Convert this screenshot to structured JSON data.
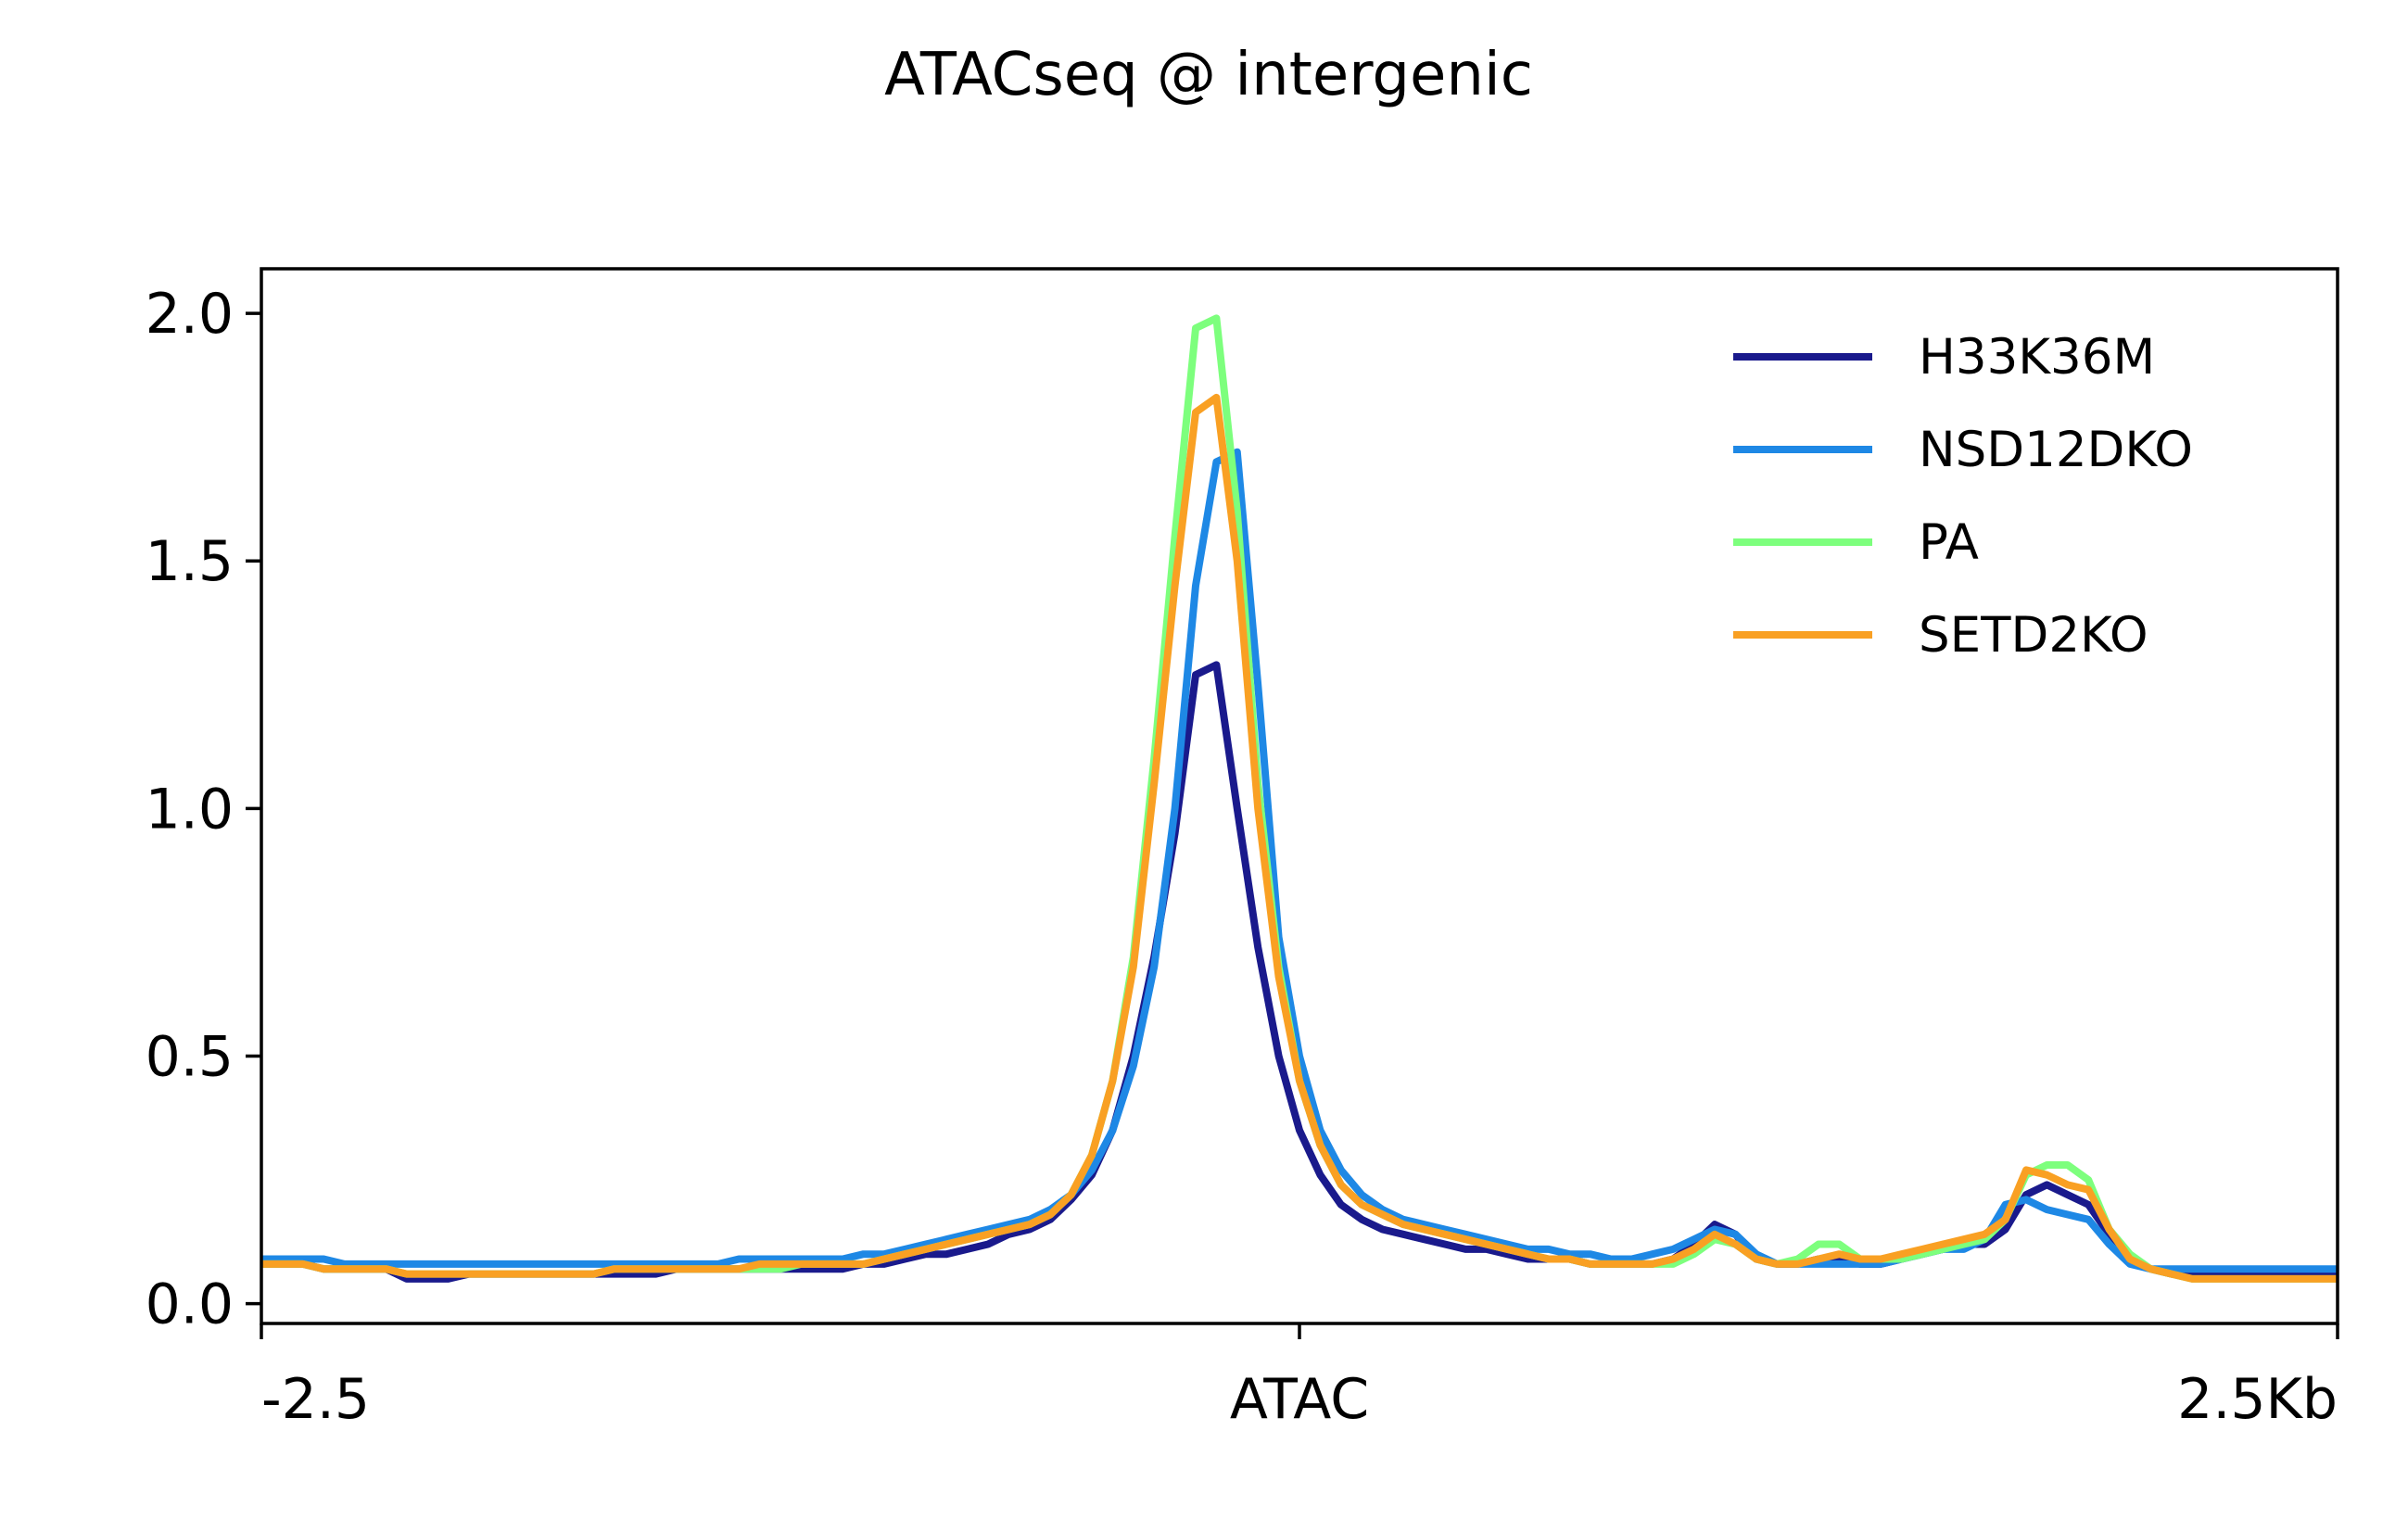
{
  "chart_data": {
    "type": "line",
    "title": "ATACseq @ intergenic",
    "xlabel": "",
    "ylabel": "",
    "xlim": [
      -2.5,
      2.5
    ],
    "ylim": [
      -0.04,
      2.09
    ],
    "x_ticks": [
      {
        "value": -2.5,
        "label": "-2.5"
      },
      {
        "value": 0.0,
        "label": "ATAC"
      },
      {
        "value": 2.5,
        "label": "2.5Kb"
      }
    ],
    "y_ticks": [
      {
        "value": 0.0,
        "label": "0.0"
      },
      {
        "value": 0.5,
        "label": "0.5"
      },
      {
        "value": 1.0,
        "label": "1.0"
      },
      {
        "value": 1.5,
        "label": "1.5"
      },
      {
        "value": 2.0,
        "label": "2.0"
      }
    ],
    "grid": false,
    "legend_position": "top-right",
    "x": [
      -2.5,
      -2.45,
      -2.4,
      -2.35,
      -2.3,
      -2.25,
      -2.2,
      -2.15,
      -2.1,
      -2.05,
      -2.0,
      -1.95,
      -1.9,
      -1.85,
      -1.8,
      -1.75,
      -1.7,
      -1.65,
      -1.6,
      -1.55,
      -1.5,
      -1.45,
      -1.4,
      -1.35,
      -1.3,
      -1.25,
      -1.2,
      -1.15,
      -1.1,
      -1.05,
      -1.0,
      -0.95,
      -0.9,
      -0.85,
      -0.8,
      -0.75,
      -0.7,
      -0.65,
      -0.6,
      -0.55,
      -0.5,
      -0.45,
      -0.4,
      -0.35,
      -0.3,
      -0.25,
      -0.2,
      -0.15,
      -0.1,
      -0.05,
      0.0,
      0.05,
      0.1,
      0.15,
      0.2,
      0.25,
      0.3,
      0.35,
      0.4,
      0.45,
      0.5,
      0.55,
      0.6,
      0.65,
      0.7,
      0.75,
      0.8,
      0.85,
      0.9,
      0.95,
      1.0,
      1.05,
      1.1,
      1.15,
      1.2,
      1.25,
      1.3,
      1.35,
      1.4,
      1.45,
      1.5,
      1.55,
      1.6,
      1.65,
      1.7,
      1.75,
      1.8,
      1.85,
      1.9,
      1.95,
      2.0,
      2.05,
      2.1,
      2.15,
      2.2,
      2.25,
      2.3,
      2.35,
      2.4,
      2.45,
      2.5
    ],
    "series": [
      {
        "name": "H33K36M",
        "color": "#1a1a8c",
        "values": [
          0.08,
          0.08,
          0.08,
          0.07,
          0.07,
          0.07,
          0.07,
          0.05,
          0.05,
          0.05,
          0.06,
          0.06,
          0.06,
          0.06,
          0.06,
          0.06,
          0.06,
          0.06,
          0.06,
          0.06,
          0.07,
          0.07,
          0.07,
          0.07,
          0.07,
          0.07,
          0.07,
          0.07,
          0.07,
          0.08,
          0.08,
          0.09,
          0.1,
          0.1,
          0.11,
          0.12,
          0.14,
          0.15,
          0.17,
          0.21,
          0.26,
          0.35,
          0.5,
          0.7,
          0.95,
          1.27,
          1.29,
          1.0,
          0.72,
          0.5,
          0.35,
          0.26,
          0.2,
          0.17,
          0.15,
          0.14,
          0.13,
          0.12,
          0.11,
          0.11,
          0.1,
          0.09,
          0.09,
          0.09,
          0.08,
          0.08,
          0.08,
          0.08,
          0.09,
          0.12,
          0.16,
          0.14,
          0.09,
          0.08,
          0.08,
          0.09,
          0.09,
          0.08,
          0.08,
          0.09,
          0.1,
          0.11,
          0.12,
          0.12,
          0.15,
          0.22,
          0.24,
          0.22,
          0.2,
          0.14,
          0.09,
          0.07,
          0.06,
          0.06,
          0.06,
          0.06,
          0.06,
          0.06,
          0.06,
          0.06,
          0.06
        ]
      },
      {
        "name": "NSD12DKO",
        "color": "#1e88e5",
        "values": [
          0.09,
          0.09,
          0.09,
          0.09,
          0.08,
          0.08,
          0.08,
          0.08,
          0.08,
          0.08,
          0.08,
          0.08,
          0.08,
          0.08,
          0.08,
          0.08,
          0.08,
          0.08,
          0.08,
          0.08,
          0.08,
          0.08,
          0.08,
          0.09,
          0.09,
          0.09,
          0.09,
          0.09,
          0.09,
          0.1,
          0.1,
          0.11,
          0.12,
          0.13,
          0.14,
          0.15,
          0.16,
          0.17,
          0.19,
          0.22,
          0.27,
          0.35,
          0.48,
          0.68,
          1.0,
          1.45,
          1.7,
          1.72,
          1.25,
          0.74,
          0.5,
          0.35,
          0.27,
          0.22,
          0.19,
          0.17,
          0.16,
          0.15,
          0.14,
          0.13,
          0.12,
          0.11,
          0.11,
          0.1,
          0.1,
          0.09,
          0.09,
          0.1,
          0.11,
          0.13,
          0.15,
          0.14,
          0.1,
          0.08,
          0.08,
          0.08,
          0.08,
          0.08,
          0.08,
          0.09,
          0.1,
          0.11,
          0.11,
          0.13,
          0.2,
          0.21,
          0.19,
          0.18,
          0.17,
          0.12,
          0.08,
          0.07,
          0.07,
          0.07,
          0.07,
          0.07,
          0.07,
          0.07,
          0.07,
          0.07,
          0.07
        ]
      },
      {
        "name": "PA",
        "color": "#7dff7d",
        "values": [
          0.08,
          0.08,
          0.08,
          0.07,
          0.07,
          0.07,
          0.07,
          0.06,
          0.06,
          0.06,
          0.06,
          0.06,
          0.06,
          0.06,
          0.06,
          0.06,
          0.06,
          0.07,
          0.07,
          0.07,
          0.07,
          0.07,
          0.07,
          0.07,
          0.07,
          0.07,
          0.08,
          0.08,
          0.08,
          0.08,
          0.09,
          0.1,
          0.11,
          0.12,
          0.13,
          0.14,
          0.15,
          0.16,
          0.18,
          0.22,
          0.3,
          0.45,
          0.7,
          1.1,
          1.55,
          1.97,
          1.99,
          1.6,
          1.05,
          0.68,
          0.45,
          0.32,
          0.24,
          0.2,
          0.18,
          0.16,
          0.15,
          0.14,
          0.13,
          0.12,
          0.11,
          0.1,
          0.09,
          0.09,
          0.08,
          0.08,
          0.08,
          0.08,
          0.08,
          0.1,
          0.13,
          0.12,
          0.09,
          0.08,
          0.09,
          0.12,
          0.12,
          0.09,
          0.09,
          0.09,
          0.1,
          0.11,
          0.12,
          0.13,
          0.17,
          0.26,
          0.28,
          0.28,
          0.25,
          0.15,
          0.1,
          0.07,
          0.06,
          0.05,
          0.05,
          0.05,
          0.05,
          0.05,
          0.05,
          0.05,
          0.05
        ]
      },
      {
        "name": "SETD2KO",
        "color": "#f9a023",
        "values": [
          0.08,
          0.08,
          0.08,
          0.07,
          0.07,
          0.07,
          0.07,
          0.06,
          0.06,
          0.06,
          0.06,
          0.06,
          0.06,
          0.06,
          0.06,
          0.06,
          0.06,
          0.07,
          0.07,
          0.07,
          0.07,
          0.07,
          0.07,
          0.07,
          0.08,
          0.08,
          0.08,
          0.08,
          0.08,
          0.08,
          0.09,
          0.1,
          0.11,
          0.12,
          0.13,
          0.14,
          0.15,
          0.16,
          0.18,
          0.22,
          0.3,
          0.45,
          0.68,
          1.05,
          1.45,
          1.8,
          1.83,
          1.5,
          1.0,
          0.66,
          0.45,
          0.32,
          0.24,
          0.2,
          0.18,
          0.16,
          0.15,
          0.14,
          0.13,
          0.12,
          0.11,
          0.1,
          0.09,
          0.09,
          0.08,
          0.08,
          0.08,
          0.08,
          0.09,
          0.11,
          0.14,
          0.12,
          0.09,
          0.08,
          0.08,
          0.09,
          0.1,
          0.09,
          0.09,
          0.1,
          0.11,
          0.12,
          0.13,
          0.14,
          0.17,
          0.27,
          0.26,
          0.24,
          0.23,
          0.15,
          0.09,
          0.07,
          0.06,
          0.05,
          0.05,
          0.05,
          0.05,
          0.05,
          0.05,
          0.05,
          0.05
        ]
      }
    ]
  }
}
